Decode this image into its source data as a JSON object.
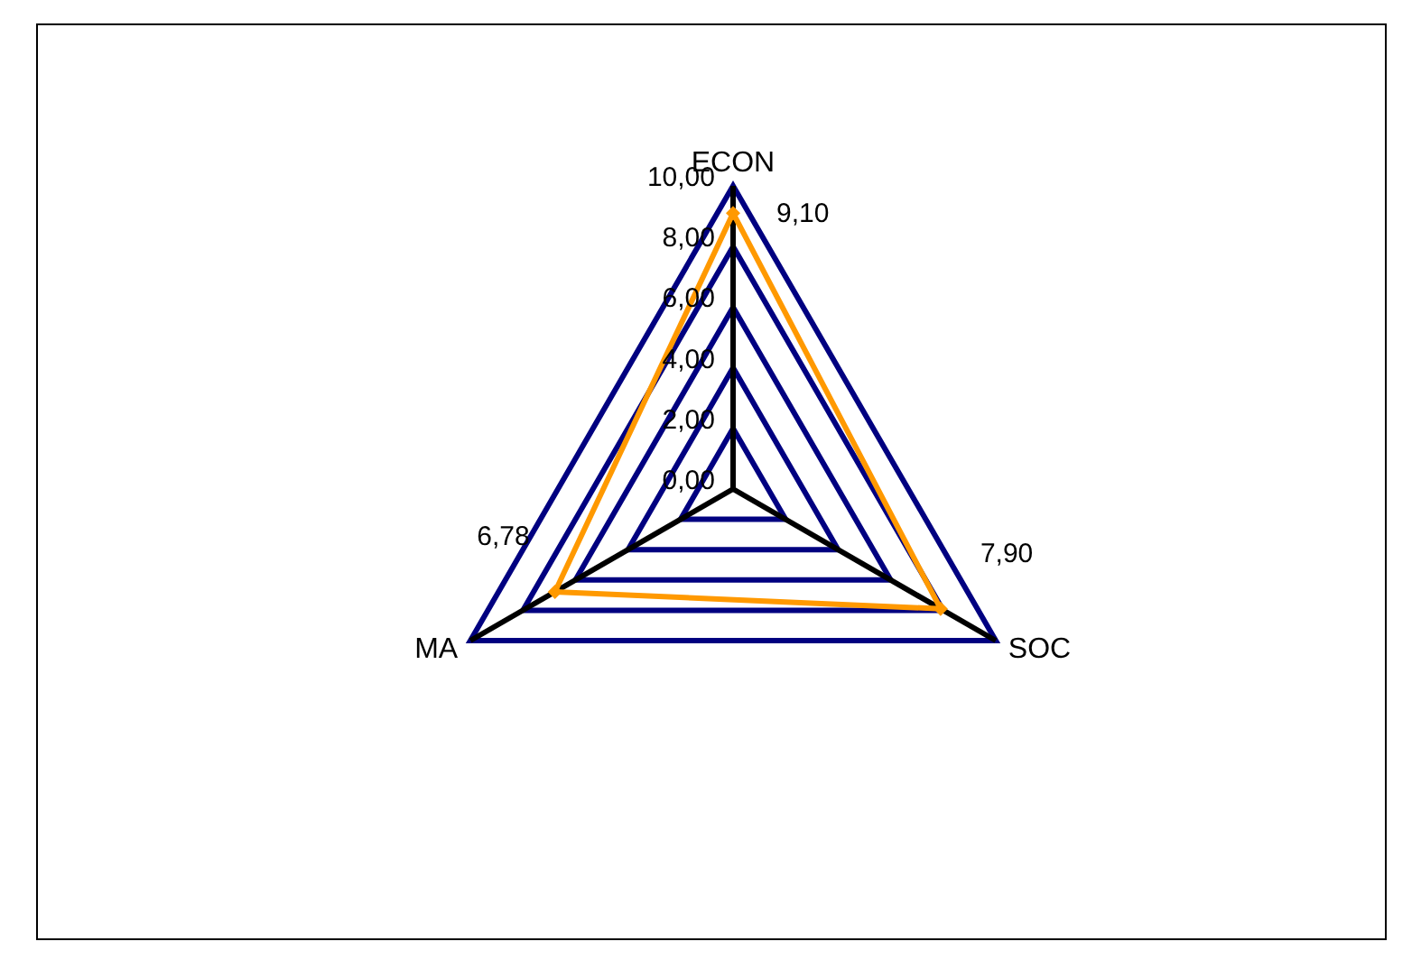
{
  "chart_data": {
    "type": "radar",
    "categories": [
      "ECON",
      "SOC",
      "MA"
    ],
    "series": [
      {
        "color": "#ff9900",
        "values": [
          9.1,
          7.9,
          6.78
        ],
        "value_labels": [
          "9,10",
          "7,90",
          "6,78"
        ]
      }
    ],
    "ylim": [
      0,
      10
    ],
    "yticks": [
      {
        "value": 0,
        "label": "0,00"
      },
      {
        "value": 2,
        "label": "2,00"
      },
      {
        "value": 4,
        "label": "4,00"
      },
      {
        "value": 6,
        "label": "6,00"
      },
      {
        "value": 8,
        "label": "8,00"
      },
      {
        "value": 10,
        "label": "10,00"
      }
    ],
    "grid": true,
    "marker": "diamond"
  }
}
